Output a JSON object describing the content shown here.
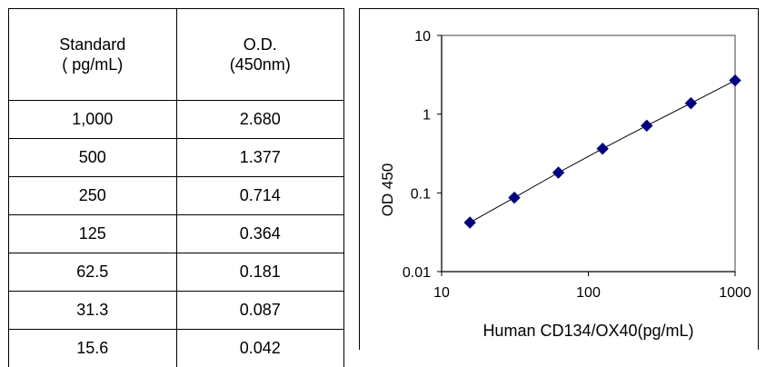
{
  "table": {
    "headers": [
      [
        "Standard",
        "( pg/mL)"
      ],
      [
        "O.D.",
        "(450nm)"
      ]
    ],
    "rows": [
      [
        "1,000",
        "2.680"
      ],
      [
        "500",
        "1.377"
      ],
      [
        "250",
        "0.714"
      ],
      [
        "125",
        "0.364"
      ],
      [
        "62.5",
        "0.181"
      ],
      [
        "31.3",
        "0.087"
      ],
      [
        "15.6",
        "0.042"
      ]
    ]
  },
  "chart_data": {
    "type": "scatter",
    "title": "",
    "xlabel": "Human CD134/OX40(pg/mL)",
    "ylabel": "OD 450",
    "x_scale": "log",
    "y_scale": "log",
    "xlim": [
      10,
      1000
    ],
    "ylim": [
      0.01,
      10
    ],
    "x_ticks": [
      "10",
      "100",
      "1000"
    ],
    "y_ticks": [
      "0.01",
      "0.1",
      "1",
      "10"
    ],
    "grid": false,
    "legend": "none",
    "trendline": true,
    "marker": "diamond",
    "marker_color": "#000080",
    "line_color": "#000000",
    "x": [
      1000,
      500,
      250,
      125,
      62.5,
      31.3,
      15.6
    ],
    "y": [
      2.68,
      1.377,
      0.714,
      0.364,
      0.181,
      0.087,
      0.042
    ]
  }
}
